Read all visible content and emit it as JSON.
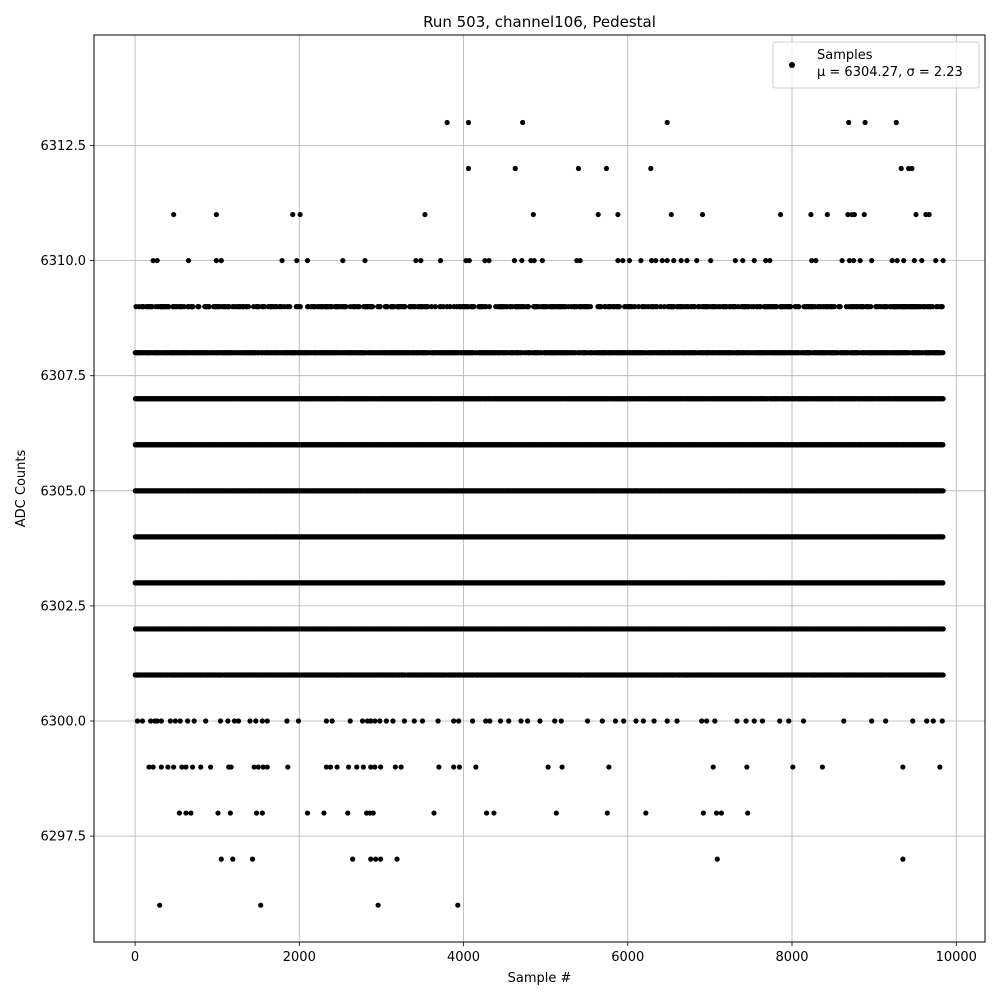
{
  "chart_data": {
    "type": "scatter",
    "title": "Run 503, channel106, Pedestal",
    "xlabel": "Sample #",
    "ylabel": "ADC Counts",
    "xlim": [
      -500,
      10350
    ],
    "ylim": [
      6295.2,
      6314.9
    ],
    "xticks": [
      0,
      2000,
      4000,
      6000,
      8000,
      10000
    ],
    "xtick_labels": [
      "0",
      "2000",
      "4000",
      "6000",
      "8000",
      "10000"
    ],
    "yticks": [
      6297.5,
      6300.0,
      6302.5,
      6305.0,
      6307.5,
      6310.0,
      6312.5
    ],
    "ytick_labels": [
      "6297.5",
      "6300.0",
      "6302.5",
      "6305.0",
      "6307.5",
      "6310.0",
      "6312.5"
    ],
    "grid": true,
    "legend_position": "top-right",
    "marker_color": "#000000",
    "series": [
      {
        "name": "Samples",
        "label_line2": "μ = 6304.27, σ = 2.23",
        "points": [
          [
            300,
            6296
          ],
          [
            1530,
            6296
          ],
          [
            2960,
            6296
          ],
          [
            3930,
            6296
          ],
          [
            1050,
            6297
          ],
          [
            1190,
            6297
          ],
          [
            1430,
            6297
          ],
          [
            2650,
            6297
          ],
          [
            2870,
            6297
          ],
          [
            2930,
            6297
          ],
          [
            2990,
            6297
          ],
          [
            3190,
            6297
          ],
          [
            7090,
            6297
          ],
          [
            9350,
            6297
          ],
          [
            540,
            6298
          ],
          [
            620,
            6298
          ],
          [
            680,
            6298
          ],
          [
            1010,
            6298
          ],
          [
            1160,
            6298
          ],
          [
            1480,
            6298
          ],
          [
            1550,
            6298
          ],
          [
            2100,
            6298
          ],
          [
            2300,
            6298
          ],
          [
            2590,
            6298
          ],
          [
            2820,
            6298
          ],
          [
            2860,
            6298
          ],
          [
            2900,
            6298
          ],
          [
            3640,
            6298
          ],
          [
            4280,
            6298
          ],
          [
            4370,
            6298
          ],
          [
            5130,
            6298
          ],
          [
            5750,
            6298
          ],
          [
            6220,
            6298
          ],
          [
            6920,
            6298
          ],
          [
            7080,
            6298
          ],
          [
            7140,
            6298
          ],
          [
            7460,
            6298
          ],
          [
            170,
            6299
          ],
          [
            220,
            6299
          ],
          [
            320,
            6299
          ],
          [
            400,
            6299
          ],
          [
            470,
            6299
          ],
          [
            570,
            6299
          ],
          [
            620,
            6299
          ],
          [
            700,
            6299
          ],
          [
            800,
            6299
          ],
          [
            920,
            6299
          ],
          [
            1140,
            6299
          ],
          [
            1170,
            6299
          ],
          [
            1450,
            6299
          ],
          [
            1500,
            6299
          ],
          [
            1560,
            6299
          ],
          [
            1610,
            6299
          ],
          [
            1860,
            6299
          ],
          [
            2330,
            6299
          ],
          [
            2380,
            6299
          ],
          [
            2460,
            6299
          ],
          [
            2600,
            6299
          ],
          [
            2700,
            6299
          ],
          [
            2780,
            6299
          ],
          [
            2870,
            6299
          ],
          [
            2920,
            6299
          ],
          [
            2990,
            6299
          ],
          [
            3170,
            6299
          ],
          [
            3240,
            6299
          ],
          [
            3700,
            6299
          ],
          [
            3880,
            6299
          ],
          [
            3950,
            6299
          ],
          [
            4150,
            6299
          ],
          [
            5030,
            6299
          ],
          [
            5200,
            6299
          ],
          [
            5770,
            6299
          ],
          [
            7040,
            6299
          ],
          [
            7450,
            6299
          ],
          [
            8010,
            6299
          ],
          [
            8370,
            6299
          ],
          [
            9350,
            6299
          ],
          [
            9800,
            6299
          ],
          [
            30,
            6300
          ],
          [
            90,
            6300
          ],
          [
            190,
            6300
          ],
          [
            240,
            6300
          ],
          [
            270,
            6300
          ],
          [
            320,
            6300
          ],
          [
            430,
            6300
          ],
          [
            490,
            6300
          ],
          [
            550,
            6300
          ],
          [
            640,
            6300
          ],
          [
            720,
            6300
          ],
          [
            860,
            6300
          ],
          [
            1040,
            6300
          ],
          [
            1130,
            6300
          ],
          [
            1210,
            6300
          ],
          [
            1260,
            6300
          ],
          [
            1400,
            6300
          ],
          [
            1470,
            6300
          ],
          [
            1550,
            6300
          ],
          [
            1610,
            6300
          ],
          [
            1850,
            6300
          ],
          [
            1990,
            6300
          ],
          [
            2330,
            6300
          ],
          [
            2400,
            6300
          ],
          [
            2620,
            6300
          ],
          [
            2770,
            6300
          ],
          [
            2830,
            6300
          ],
          [
            2870,
            6300
          ],
          [
            2920,
            6300
          ],
          [
            2980,
            6300
          ],
          [
            3060,
            6300
          ],
          [
            3140,
            6300
          ],
          [
            3280,
            6300
          ],
          [
            3400,
            6300
          ],
          [
            3500,
            6300
          ],
          [
            3690,
            6300
          ],
          [
            3880,
            6300
          ],
          [
            3940,
            6300
          ],
          [
            4110,
            6300
          ],
          [
            4270,
            6300
          ],
          [
            4320,
            6300
          ],
          [
            4450,
            6300
          ],
          [
            4550,
            6300
          ],
          [
            4700,
            6300
          ],
          [
            4780,
            6300
          ],
          [
            4930,
            6300
          ],
          [
            5110,
            6300
          ],
          [
            5190,
            6300
          ],
          [
            5510,
            6300
          ],
          [
            5690,
            6300
          ],
          [
            5850,
            6300
          ],
          [
            5950,
            6300
          ],
          [
            6100,
            6300
          ],
          [
            6190,
            6300
          ],
          [
            6320,
            6300
          ],
          [
            6480,
            6300
          ],
          [
            6600,
            6300
          ],
          [
            6900,
            6300
          ],
          [
            6960,
            6300
          ],
          [
            7060,
            6300
          ],
          [
            7330,
            6300
          ],
          [
            7440,
            6300
          ],
          [
            7540,
            6300
          ],
          [
            7640,
            6300
          ],
          [
            7850,
            6300
          ],
          [
            7960,
            6300
          ],
          [
            8140,
            6300
          ],
          [
            8630,
            6300
          ],
          [
            8970,
            6300
          ],
          [
            9140,
            6300
          ],
          [
            9470,
            6300
          ],
          [
            9640,
            6300
          ],
          [
            9720,
            6300
          ],
          [
            9830,
            6300
          ],
          [
            3800,
            6313
          ],
          [
            4060,
            6313
          ],
          [
            4720,
            6313
          ],
          [
            6480,
            6313
          ],
          [
            8690,
            6313
          ],
          [
            8890,
            6313
          ],
          [
            9270,
            6313
          ],
          [
            4060,
            6312
          ],
          [
            4630,
            6312
          ],
          [
            5400,
            6312
          ],
          [
            5740,
            6312
          ],
          [
            6280,
            6312
          ],
          [
            9330,
            6312
          ],
          [
            9420,
            6312
          ],
          [
            9460,
            6312
          ],
          [
            470,
            6311
          ],
          [
            990,
            6311
          ],
          [
            1920,
            6311
          ],
          [
            2010,
            6311
          ],
          [
            3530,
            6311
          ],
          [
            4850,
            6311
          ],
          [
            5640,
            6311
          ],
          [
            5880,
            6311
          ],
          [
            6530,
            6311
          ],
          [
            6910,
            6311
          ],
          [
            7860,
            6311
          ],
          [
            8230,
            6311
          ],
          [
            8430,
            6311
          ],
          [
            8680,
            6311
          ],
          [
            8730,
            6311
          ],
          [
            8760,
            6311
          ],
          [
            8880,
            6311
          ],
          [
            9510,
            6311
          ],
          [
            9630,
            6311
          ],
          [
            9670,
            6311
          ],
          [
            220,
            6310
          ],
          [
            270,
            6310
          ],
          [
            650,
            6310
          ],
          [
            990,
            6310
          ],
          [
            1050,
            6310
          ],
          [
            1790,
            6310
          ],
          [
            1970,
            6310
          ],
          [
            2100,
            6310
          ],
          [
            2530,
            6310
          ],
          [
            2800,
            6310
          ],
          [
            3420,
            6310
          ],
          [
            3480,
            6310
          ],
          [
            3720,
            6310
          ],
          [
            4030,
            6310
          ],
          [
            4070,
            6310
          ],
          [
            4260,
            6310
          ],
          [
            4310,
            6310
          ],
          [
            4620,
            6310
          ],
          [
            4710,
            6310
          ],
          [
            4820,
            6310
          ],
          [
            4860,
            6310
          ],
          [
            4960,
            6310
          ],
          [
            5380,
            6310
          ],
          [
            5420,
            6310
          ],
          [
            5880,
            6310
          ],
          [
            5940,
            6310
          ],
          [
            6020,
            6310
          ],
          [
            6160,
            6310
          ],
          [
            6290,
            6310
          ],
          [
            6340,
            6310
          ],
          [
            6420,
            6310
          ],
          [
            6480,
            6310
          ],
          [
            6560,
            6310
          ],
          [
            6650,
            6310
          ],
          [
            6720,
            6310
          ],
          [
            6840,
            6310
          ],
          [
            7010,
            6310
          ],
          [
            7310,
            6310
          ],
          [
            7400,
            6310
          ],
          [
            7540,
            6310
          ],
          [
            7680,
            6310
          ],
          [
            7730,
            6310
          ],
          [
            8240,
            6310
          ],
          [
            8290,
            6310
          ],
          [
            8610,
            6310
          ],
          [
            8700,
            6310
          ],
          [
            8750,
            6310
          ],
          [
            8830,
            6310
          ],
          [
            8970,
            6310
          ],
          [
            9220,
            6310
          ],
          [
            9280,
            6310
          ],
          [
            9360,
            6310
          ],
          [
            9490,
            6310
          ],
          [
            9580,
            6310
          ],
          [
            9750,
            6310
          ],
          [
            9840,
            6310
          ]
        ],
        "dense_levels": [
          {
            "y": 6309,
            "density": 0.45
          },
          {
            "y": 6308,
            "density": 0.85
          },
          {
            "y": 6307,
            "density": 0.98
          },
          {
            "y": 6306,
            "density": 1.0
          },
          {
            "y": 6305,
            "density": 1.0
          },
          {
            "y": 6304,
            "density": 1.0
          },
          {
            "y": 6303,
            "density": 1.0
          },
          {
            "y": 6302,
            "density": 1.0
          },
          {
            "y": 6301,
            "density": 0.95
          }
        ],
        "x_range": [
          0,
          9840
        ]
      }
    ]
  }
}
